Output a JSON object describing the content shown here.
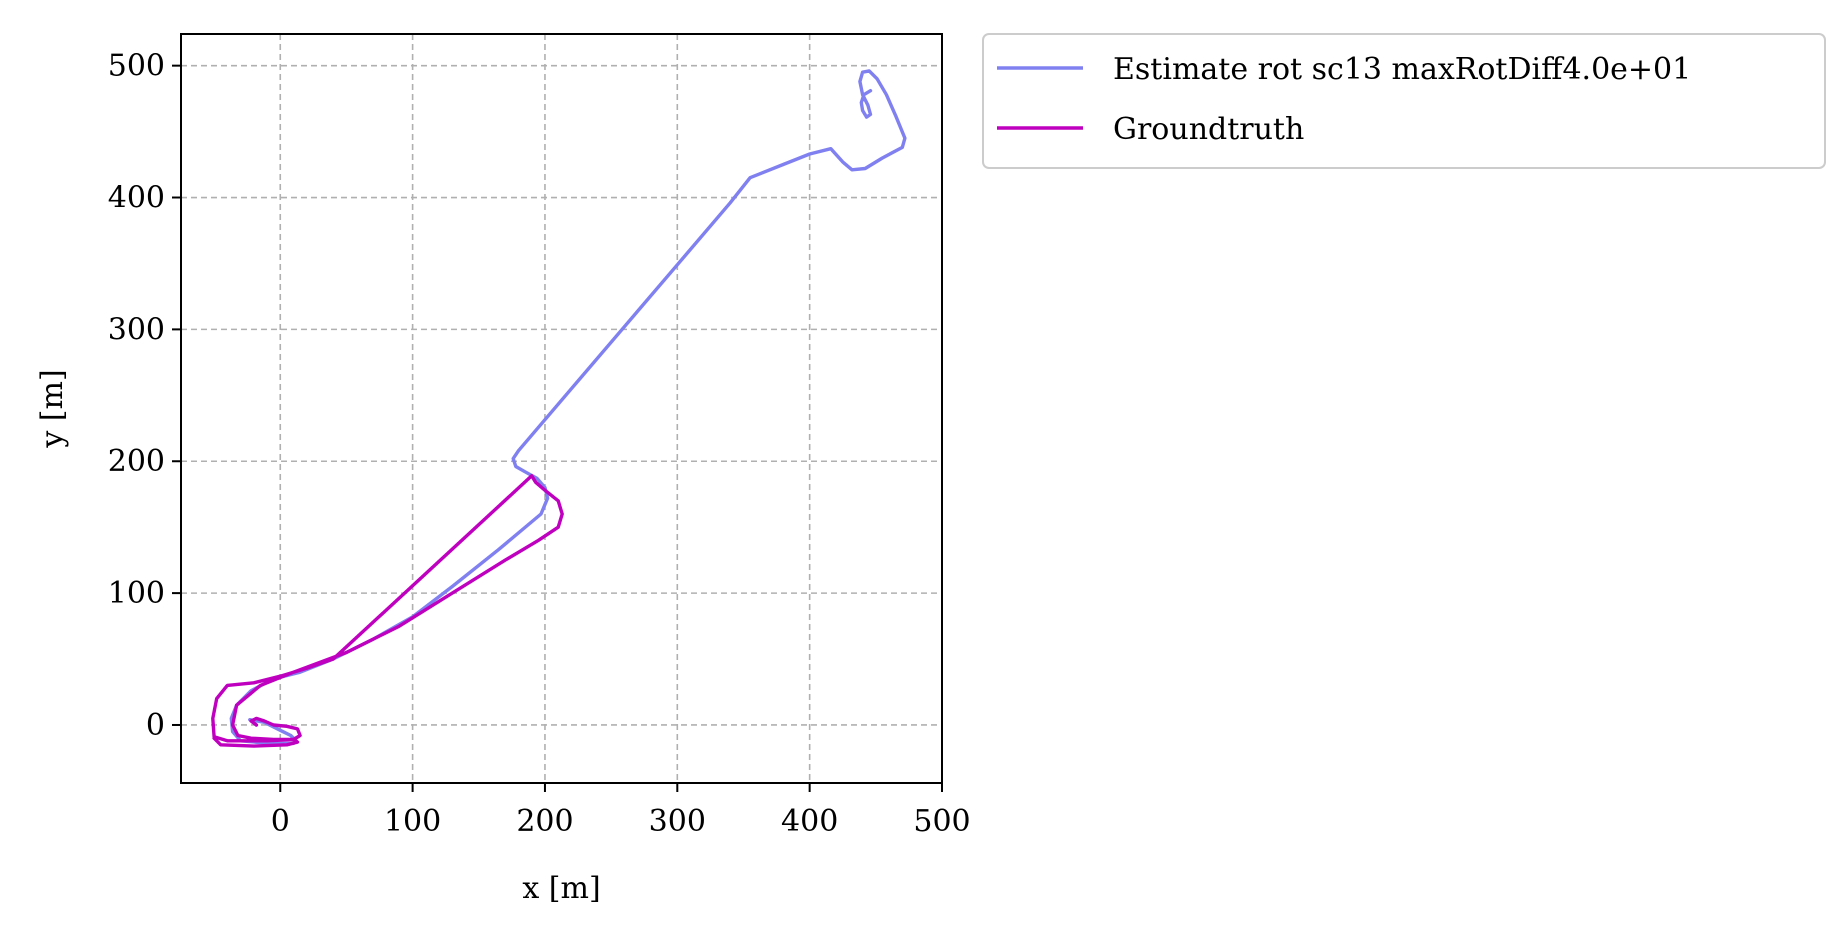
{
  "chart_data": {
    "type": "line",
    "title": "",
    "xlabel": "x [m]",
    "ylabel": "y [m]",
    "xlim": [
      -75,
      500
    ],
    "ylim": [
      -44,
      524
    ],
    "xticks": [
      0,
      100,
      200,
      300,
      400,
      500
    ],
    "yticks": [
      0,
      100,
      200,
      300,
      400,
      500
    ],
    "xtick_labels": [
      "0",
      "100",
      "200",
      "300",
      "400",
      "500"
    ],
    "ytick_labels": [
      "0",
      "100",
      "200",
      "300",
      "400",
      "500"
    ],
    "grid": true,
    "legend_position": "outside-upper-right",
    "series": [
      {
        "name": "Estimate rot sc13 maxRotDiff4.0e+01",
        "color": "#8080f0",
        "x": [
          -18,
          -23,
          -12,
          0,
          8,
          12,
          10,
          -8,
          -30,
          -36,
          -37,
          -33,
          -22,
          -5,
          15,
          40,
          70,
          100,
          130,
          165,
          197,
          202,
          200,
          194,
          185,
          178,
          176,
          180,
          220,
          260,
          300,
          340,
          355,
          380,
          400,
          416,
          425,
          432,
          442,
          455,
          470,
          472,
          465,
          458,
          451,
          445,
          440,
          438,
          440,
          444,
          446,
          443,
          440,
          439,
          441,
          446
        ],
        "y": [
          0,
          4,
          2,
          -4,
          -8,
          -12,
          -14,
          -14,
          -12,
          -5,
          5,
          15,
          26,
          35,
          40,
          50,
          65,
          82,
          105,
          133,
          160,
          172,
          180,
          187,
          192,
          196,
          202,
          208,
          255,
          302,
          349,
          396,
          415,
          425,
          433,
          437,
          427,
          421,
          422,
          430,
          438,
          445,
          462,
          478,
          490,
          496,
          495,
          488,
          478,
          470,
          463,
          461,
          466,
          472,
          478,
          481
        ]
      },
      {
        "name": "Groundtruth",
        "color": "#bf00bf",
        "x": [
          -18,
          -22,
          -18,
          -12,
          -5,
          5,
          13,
          15,
          10,
          -10,
          -40,
          -50,
          -51,
          -48,
          -40,
          -20,
          0,
          20,
          40,
          190,
          193,
          200,
          210,
          213,
          210,
          195,
          170,
          130,
          90,
          50,
          10,
          -15,
          -33,
          -36,
          -32,
          -22,
          -5,
          10,
          13,
          5,
          -20,
          -45,
          -50
        ],
        "y": [
          0,
          3,
          5,
          3,
          0,
          -1,
          -3,
          -8,
          -11,
          -12,
          -12,
          -9,
          5,
          20,
          30,
          32,
          37,
          43,
          50,
          189,
          184,
          178,
          170,
          160,
          150,
          140,
          125,
          100,
          75,
          55,
          40,
          30,
          15,
          0,
          -8,
          -10,
          -11,
          -11,
          -13,
          -15,
          -16,
          -15,
          -10
        ]
      }
    ]
  }
}
